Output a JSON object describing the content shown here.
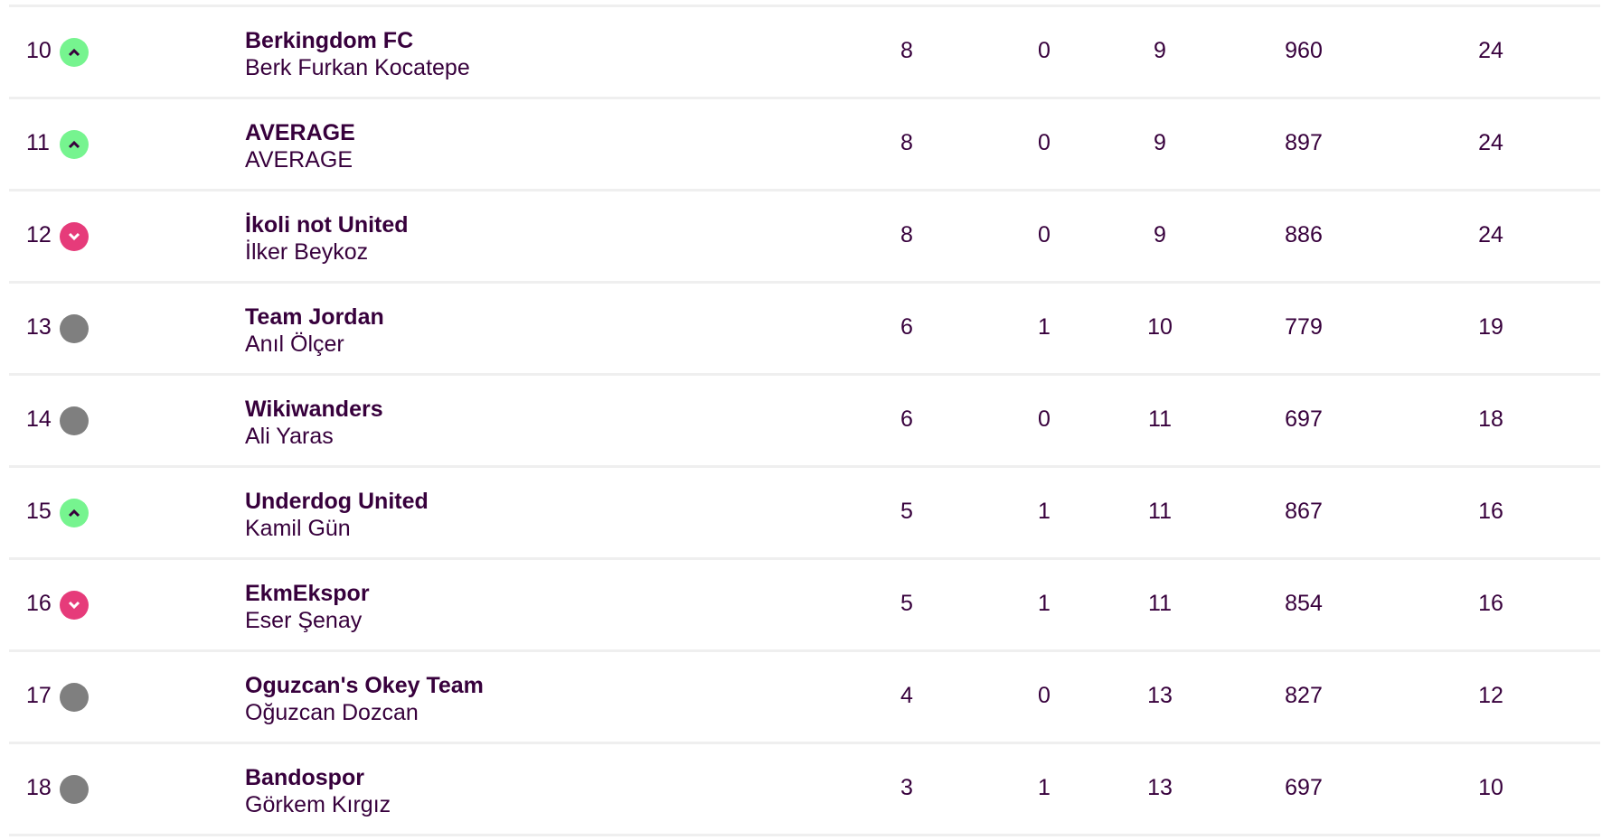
{
  "colors": {
    "text": "#37003c",
    "up": "#76f48f",
    "down": "#e63b7a",
    "same": "#7f7f7f"
  },
  "rows": [
    {
      "rank": "10",
      "movement": "up",
      "team": "Berkingdom FC",
      "manager": "Berk Furkan Kocatepe",
      "w": "8",
      "d": "0",
      "l": "9",
      "pts_for": "960",
      "points": "24"
    },
    {
      "rank": "11",
      "movement": "up",
      "team": "AVERAGE",
      "manager": "AVERAGE",
      "w": "8",
      "d": "0",
      "l": "9",
      "pts_for": "897",
      "points": "24"
    },
    {
      "rank": "12",
      "movement": "down",
      "team": "İkoli not United",
      "manager": "İlker Beykoz",
      "w": "8",
      "d": "0",
      "l": "9",
      "pts_for": "886",
      "points": "24"
    },
    {
      "rank": "13",
      "movement": "same",
      "team": "Team Jordan",
      "manager": "Anıl Ölçer",
      "w": "6",
      "d": "1",
      "l": "10",
      "pts_for": "779",
      "points": "19"
    },
    {
      "rank": "14",
      "movement": "same",
      "team": "Wikiwanders",
      "manager": "Ali Yaras",
      "w": "6",
      "d": "0",
      "l": "11",
      "pts_for": "697",
      "points": "18"
    },
    {
      "rank": "15",
      "movement": "up",
      "team": "Underdog United",
      "manager": "Kamil Gün",
      "w": "5",
      "d": "1",
      "l": "11",
      "pts_for": "867",
      "points": "16"
    },
    {
      "rank": "16",
      "movement": "down",
      "team": "EkmEkspor",
      "manager": "Eser Şenay",
      "w": "5",
      "d": "1",
      "l": "11",
      "pts_for": "854",
      "points": "16"
    },
    {
      "rank": "17",
      "movement": "same",
      "team": "Oguzcan's Okey Team",
      "manager": "Oğuzcan Dozcan",
      "w": "4",
      "d": "0",
      "l": "13",
      "pts_for": "827",
      "points": "12"
    },
    {
      "rank": "18",
      "movement": "same",
      "team": "Bandospor",
      "manager": "Görkem Kırgız",
      "w": "3",
      "d": "1",
      "l": "13",
      "pts_for": "697",
      "points": "10"
    }
  ]
}
